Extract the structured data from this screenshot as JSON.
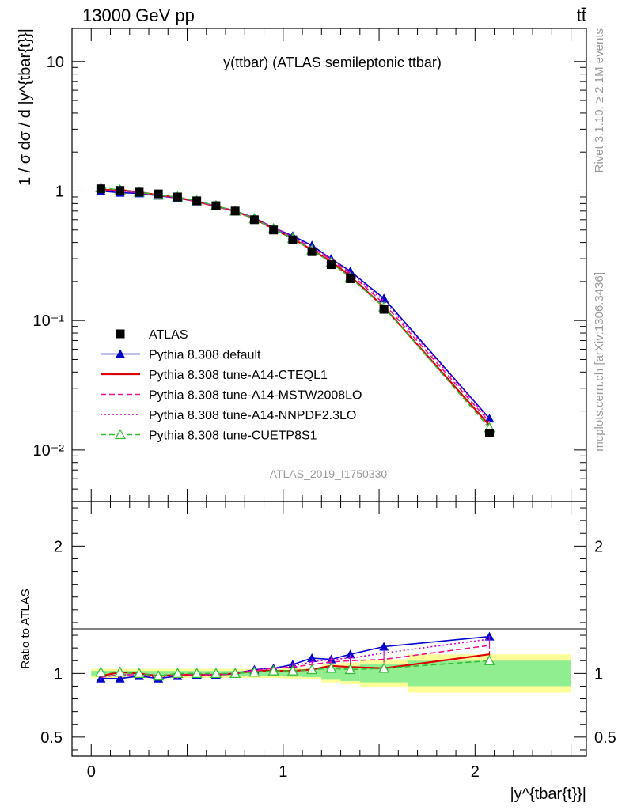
{
  "header": {
    "left": "13000 GeV pp",
    "right": "tt̄"
  },
  "side_labels": {
    "rivet": "Rivet 3.1.10, ≥ 2.1M events",
    "mcplots": "mcplots.cern.ch [arXiv:1306.3436]"
  },
  "chart_data": [
    {
      "type": "line",
      "title": "y(ttbar) (ATLAS semileptonic ttbar)",
      "watermark": "ATLAS_2019_I1750330",
      "ylabel": "1 / σ dσ / d |y^{tbar{t}}|",
      "yscale": "log",
      "xlim": [
        -0.1,
        2.58
      ],
      "ylim": [
        0.004,
        18
      ],
      "y_ticks": [
        {
          "value": 0.01,
          "label": "10⁻²"
        },
        {
          "value": 0.1,
          "label": "10⁻¹"
        },
        {
          "value": 1,
          "label": "1"
        },
        {
          "value": 10,
          "label": "10"
        }
      ],
      "x": [
        0.05,
        0.15,
        0.25,
        0.35,
        0.45,
        0.55,
        0.65,
        0.75,
        0.85,
        0.95,
        1.05,
        1.15,
        1.25,
        1.35,
        1.525,
        2.075
      ],
      "x_edges": [
        0.0,
        0.1,
        0.2,
        0.3,
        0.4,
        0.5,
        0.6,
        0.7,
        0.8,
        0.9,
        1.0,
        1.1,
        1.2,
        1.3,
        1.4,
        1.65,
        2.5
      ],
      "legend": "left-bottom",
      "series": [
        {
          "name": "ATLAS",
          "color": "#000000",
          "style": "data",
          "marker": "square",
          "values": [
            1.04,
            1.01,
            0.98,
            0.95,
            0.9,
            0.84,
            0.77,
            0.7,
            0.6,
            0.5,
            0.42,
            0.34,
            0.27,
            0.21,
            0.122,
            0.0135
          ]
        },
        {
          "name": "Pythia 8.308 default",
          "color": "#0000cc",
          "style": "solid",
          "marker": "triangle",
          "values": [
            1.0,
            0.97,
            0.96,
            0.92,
            0.88,
            0.83,
            0.76,
            0.7,
            0.62,
            0.52,
            0.45,
            0.38,
            0.3,
            0.24,
            0.148,
            0.0175
          ]
        },
        {
          "name": "Pythia 8.308 tune-A14-CTEQL1",
          "color": "#dd0000",
          "style": "solid",
          "marker": "none",
          "values": [
            1.02,
            1.02,
            0.98,
            0.93,
            0.89,
            0.83,
            0.76,
            0.7,
            0.61,
            0.51,
            0.43,
            0.35,
            0.285,
            0.22,
            0.127,
            0.0155
          ]
        },
        {
          "name": "Pythia 8.308 tune-A14-MSTW2008LO",
          "color": "#ee1188",
          "style": "dashed",
          "marker": "none",
          "values": [
            1.01,
            1.0,
            0.97,
            0.93,
            0.89,
            0.83,
            0.76,
            0.7,
            0.61,
            0.52,
            0.44,
            0.365,
            0.295,
            0.23,
            0.135,
            0.0165
          ]
        },
        {
          "name": "Pythia 8.308 tune-A14-NNPDF2.3LO",
          "color": "#cc00cc",
          "style": "dotted",
          "marker": "none",
          "values": [
            1.01,
            1.0,
            0.97,
            0.92,
            0.88,
            0.83,
            0.76,
            0.7,
            0.62,
            0.52,
            0.44,
            0.37,
            0.3,
            0.235,
            0.142,
            0.0172
          ]
        },
        {
          "name": "Pythia 8.308 tune-CUETP8S1",
          "color": "#33bb33",
          "style": "dashed",
          "marker": "open-triangle",
          "values": [
            1.06,
            1.02,
            0.98,
            0.93,
            0.9,
            0.84,
            0.77,
            0.7,
            0.61,
            0.51,
            0.43,
            0.35,
            0.28,
            0.215,
            0.127,
            0.0148
          ]
        }
      ]
    },
    {
      "type": "line",
      "ylabel": "Ratio to ATLAS",
      "xlabel": "|y^{tbar{t}}|",
      "xlim": [
        -0.1,
        2.58
      ],
      "ylim": [
        0.35,
        2.35
      ],
      "x_ticks": [
        0,
        1,
        2
      ],
      "y_ticks": [
        0.5,
        1,
        2
      ],
      "x": [
        0.05,
        0.15,
        0.25,
        0.35,
        0.45,
        0.55,
        0.65,
        0.75,
        0.85,
        0.95,
        1.05,
        1.15,
        1.25,
        1.35,
        1.525,
        2.075
      ],
      "x_edges": [
        0.0,
        0.1,
        0.2,
        0.3,
        0.4,
        0.5,
        0.6,
        0.7,
        0.8,
        0.9,
        1.0,
        1.1,
        1.2,
        1.3,
        1.4,
        1.65,
        2.5
      ],
      "band_stat": [
        0.02,
        0.02,
        0.02,
        0.02,
        0.02,
        0.02,
        0.02,
        0.02,
        0.02,
        0.02,
        0.025,
        0.03,
        0.05,
        0.06,
        0.07,
        0.1
      ],
      "band_total": [
        0.035,
        0.035,
        0.035,
        0.035,
        0.035,
        0.035,
        0.035,
        0.035,
        0.035,
        0.035,
        0.04,
        0.045,
        0.07,
        0.085,
        0.11,
        0.15
      ],
      "series": [
        {
          "name": "Pythia 8.308 default",
          "color": "#0000cc",
          "style": "solid",
          "marker": "triangle",
          "values": [
            0.96,
            0.96,
            0.98,
            0.96,
            0.98,
            0.99,
            0.99,
            1.0,
            1.03,
            1.04,
            1.07,
            1.12,
            1.11,
            1.15,
            1.21,
            1.29
          ]
        },
        {
          "name": "Pythia 8.308 tune-A14-CTEQL1",
          "color": "#dd0000",
          "style": "solid",
          "marker": "none",
          "values": [
            0.98,
            1.01,
            1.0,
            0.98,
            0.99,
            0.99,
            0.99,
            1.0,
            1.02,
            1.02,
            1.02,
            1.03,
            1.06,
            1.05,
            1.04,
            1.15
          ]
        },
        {
          "name": "Pythia 8.308 tune-A14-MSTW2008LO",
          "color": "#ee1188",
          "style": "dashed",
          "marker": "none",
          "values": [
            0.97,
            0.99,
            0.99,
            0.98,
            0.99,
            0.99,
            0.99,
            1.0,
            1.02,
            1.04,
            1.05,
            1.07,
            1.09,
            1.1,
            1.11,
            1.22
          ]
        },
        {
          "name": "Pythia 8.308 tune-A14-NNPDF2.3LO",
          "color": "#cc00cc",
          "style": "dotted",
          "marker": "none",
          "values": [
            0.97,
            0.99,
            0.99,
            0.97,
            0.98,
            0.99,
            0.99,
            1.0,
            1.03,
            1.04,
            1.06,
            1.09,
            1.11,
            1.12,
            1.16,
            1.27
          ]
        },
        {
          "name": "Pythia 8.308 tune-CUETP8S1",
          "color": "#33bb33",
          "style": "dashed",
          "marker": "open-triangle",
          "values": [
            1.01,
            1.01,
            1.0,
            0.98,
            1.0,
            1.0,
            1.0,
            1.0,
            1.01,
            1.02,
            1.02,
            1.03,
            1.04,
            1.03,
            1.04,
            1.1
          ]
        }
      ]
    }
  ]
}
